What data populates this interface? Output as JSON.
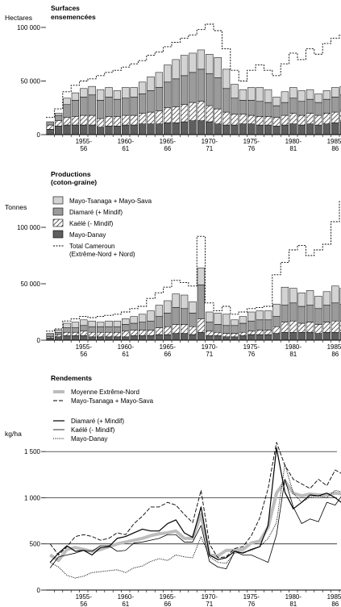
{
  "colors": {
    "mayo_tsanaga_sava": "#d3d3d3",
    "diamare": "#9b9b9b",
    "kaele_hatch": "#8a8a8a",
    "mayo_danay": "#5e5e5e",
    "moyenne": "#bdbdbd"
  },
  "x_ticks": [
    {
      "year": 1955,
      "l1": "1955-",
      "l2": "56"
    },
    {
      "year": 1960,
      "l1": "1960-",
      "l2": "61"
    },
    {
      "year": 1965,
      "l1": "1965-",
      "l2": "66"
    },
    {
      "year": 1970,
      "l1": "1970-",
      "l2": "71"
    },
    {
      "year": 1975,
      "l1": "1975-",
      "l2": "76"
    },
    {
      "year": 1980,
      "l1": "1980-",
      "l2": "81"
    },
    {
      "year": 1985,
      "l1": "1985-",
      "l2": "86"
    }
  ],
  "chart_data": [
    {
      "type": "bar",
      "stacked": true,
      "title": "Surfaces\nensemencées",
      "title_line1": "Surfaces",
      "title_line2": "ensemencées",
      "ylabel": "Hectares",
      "ylim": [
        0,
        100000
      ],
      "yticks": [
        0,
        50000,
        100000
      ],
      "ytick_labels": [
        "0",
        "50 000",
        "100 000"
      ],
      "x": [
        1951,
        1952,
        1953,
        1954,
        1955,
        1956,
        1957,
        1958,
        1959,
        1960,
        1961,
        1962,
        1963,
        1964,
        1965,
        1966,
        1967,
        1968,
        1969,
        1970,
        1971,
        1972,
        1973,
        1974,
        1975,
        1976,
        1977,
        1978,
        1979,
        1980,
        1981,
        1982,
        1983,
        1984,
        1985,
        1986
      ],
      "series": [
        {
          "key": "mayo_danay",
          "values": [
            5000,
            8000,
            9000,
            9000,
            9000,
            9000,
            7000,
            8000,
            8000,
            9000,
            9000,
            10000,
            10000,
            10000,
            11000,
            11000,
            12000,
            13000,
            13000,
            12000,
            10000,
            9000,
            9000,
            10000,
            10000,
            9000,
            9000,
            8000,
            9000,
            10000,
            9000,
            10000,
            9000,
            10000,
            11000,
            12000
          ]
        },
        {
          "key": "kaele",
          "values": [
            4000,
            5000,
            7000,
            8000,
            9000,
            9000,
            8000,
            9000,
            9000,
            9000,
            9000,
            10000,
            11000,
            12000,
            14000,
            15000,
            16000,
            17000,
            18000,
            15000,
            14000,
            12000,
            10000,
            9000,
            8000,
            8000,
            8000,
            8000,
            9000,
            10000,
            9000,
            10000,
            9000,
            10000,
            10000,
            11000
          ]
        },
        {
          "key": "diamare",
          "values": [
            3000,
            5000,
            12000,
            15000,
            17000,
            19000,
            17000,
            18000,
            16000,
            16000,
            17000,
            18000,
            20000,
            22000,
            24000,
            26000,
            27000,
            28000,
            30000,
            30000,
            29000,
            22000,
            15000,
            13000,
            14000,
            14000,
            13000,
            11000,
            12000,
            14000,
            13000,
            13000,
            12000,
            13000,
            14000,
            14000
          ]
        },
        {
          "key": "mayo_tsanaga_sava",
          "values": [
            0,
            2000,
            6000,
            7000,
            8000,
            8000,
            10000,
            9000,
            8000,
            10000,
            9000,
            11000,
            13000,
            14000,
            16000,
            18000,
            19000,
            18000,
            18000,
            18000,
            19000,
            18000,
            13000,
            10000,
            12000,
            13000,
            12000,
            8000,
            10000,
            10000,
            10000,
            9000,
            8000,
            8000,
            9000,
            8000
          ]
        }
      ],
      "total_cameroun": [
        16000,
        24000,
        40000,
        46000,
        50000,
        52000,
        55000,
        58000,
        60000,
        63000,
        66000,
        69000,
        74000,
        77000,
        82000,
        86000,
        90000,
        93000,
        98000,
        103000,
        97000,
        80000,
        60000,
        50000,
        60000,
        65000,
        60000,
        55000,
        66000,
        76000,
        70000,
        80000,
        75000,
        85000,
        90000,
        93000
      ]
    },
    {
      "type": "bar",
      "stacked": true,
      "title_line1": "Productions",
      "title_line2": "(coton-graine)",
      "ylabel": "Tonnes",
      "ylim": [
        0,
        125000
      ],
      "yticks": [
        0,
        50000,
        100000
      ],
      "ytick_labels": [
        "0",
        "50 000",
        "100 000"
      ],
      "legend": [
        {
          "key": "mayo_tsanaga_sava",
          "label": "Mayo-Tsanaga + Mayo-Sava"
        },
        {
          "key": "diamare",
          "label": "Diamaré (+ Mindif)"
        },
        {
          "key": "kaele",
          "label": "Kaélé (- Mindif)"
        },
        {
          "key": "mayo_danay",
          "label": "Mayo-Danay"
        },
        {
          "key": "total",
          "label_line1": "Total Cameroun",
          "label_line2": "(Extrême-Nord + Nord)"
        }
      ],
      "x": [
        1951,
        1952,
        1953,
        1954,
        1955,
        1956,
        1957,
        1958,
        1959,
        1960,
        1961,
        1962,
        1963,
        1964,
        1965,
        1966,
        1967,
        1968,
        1969,
        1970,
        1971,
        1972,
        1973,
        1974,
        1975,
        1976,
        1977,
        1978,
        1979,
        1980,
        1981,
        1982,
        1983,
        1984,
        1985,
        1986
      ],
      "series": [
        {
          "key": "mayo_danay",
          "values": [
            2000,
            3000,
            4000,
            4000,
            4000,
            3000,
            3000,
            3000,
            3000,
            3000,
            4000,
            4000,
            4000,
            5000,
            5000,
            6000,
            6000,
            5000,
            7000,
            4000,
            4000,
            3000,
            3000,
            4000,
            5000,
            5000,
            5000,
            6000,
            7000,
            7000,
            7000,
            7000,
            6000,
            7000,
            7000,
            7000
          ]
        },
        {
          "key": "kaele",
          "values": [
            1000,
            2000,
            3000,
            3000,
            4000,
            4000,
            4000,
            4000,
            4000,
            5000,
            5000,
            5000,
            5000,
            6000,
            7000,
            8000,
            8000,
            7000,
            12000,
            4000,
            3000,
            3000,
            3000,
            3000,
            3000,
            4000,
            4000,
            6000,
            9000,
            10000,
            8000,
            9000,
            8000,
            9000,
            10000,
            10000
          ]
        },
        {
          "key": "diamare",
          "values": [
            3000,
            2000,
            4000,
            4000,
            5000,
            5000,
            5000,
            5000,
            5000,
            6000,
            6000,
            7000,
            8000,
            10000,
            12000,
            15000,
            14000,
            12000,
            30000,
            8000,
            7000,
            7000,
            7000,
            8000,
            9000,
            9000,
            9000,
            9000,
            15000,
            16000,
            15000,
            15000,
            14000,
            15000,
            16000,
            15000
          ]
        },
        {
          "key": "mayo_tsanaga_sava",
          "values": [
            0,
            2000,
            4000,
            5000,
            5000,
            5000,
            4000,
            5000,
            5000,
            5000,
            6000,
            7000,
            9000,
            10000,
            11000,
            12000,
            12000,
            10000,
            15000,
            9000,
            10000,
            10000,
            5000,
            6000,
            8000,
            8000,
            8000,
            11000,
            16000,
            13000,
            12000,
            13000,
            11000,
            12000,
            15000,
            14000
          ]
        }
      ],
      "total_cameroun": [
        8000,
        10000,
        17000,
        19000,
        21000,
        20000,
        21000,
        22000,
        23000,
        25000,
        28000,
        30000,
        37000,
        42000,
        47000,
        53000,
        51000,
        48000,
        92000,
        33000,
        26000,
        30000,
        23000,
        25000,
        28000,
        29000,
        30000,
        58000,
        69000,
        80000,
        84000,
        75000,
        80000,
        85000,
        105000,
        123000
      ]
    },
    {
      "type": "line",
      "title": "Rendements",
      "ylabel": "kg/ha",
      "ylim": [
        0,
        1650
      ],
      "yticks": [
        0,
        500,
        1000,
        1500
      ],
      "ytick_labels": [
        "0",
        "500",
        "1 000",
        "1 500"
      ],
      "grid": true,
      "legend": [
        {
          "key": "moyenne",
          "label": "Moyenne Extrême-Nord"
        },
        {
          "key": "mts",
          "label": "Mayo-Tsanaga + Mayo-Sava"
        },
        {
          "key": "diamare",
          "label": "Diamaré (+ Mindif)"
        },
        {
          "key": "kaele",
          "label": "Kaélé (- Mindif)"
        },
        {
          "key": "danay",
          "label": "Mayo-Danay"
        }
      ],
      "x": [
        1951,
        1952,
        1953,
        1954,
        1955,
        1956,
        1957,
        1958,
        1959,
        1960,
        1961,
        1962,
        1963,
        1964,
        1965,
        1966,
        1967,
        1968,
        1969,
        1970,
        1971,
        1972,
        1973,
        1974,
        1975,
        1976,
        1977,
        1978,
        1979,
        1980,
        1981,
        1982,
        1983,
        1984,
        1985,
        1986
      ],
      "series": [
        {
          "key": "moyenne",
          "values": [
            380,
            320,
            440,
            460,
            440,
            420,
            440,
            470,
            500,
            520,
            540,
            560,
            590,
            610,
            620,
            640,
            560,
            560,
            820,
            380,
            370,
            430,
            430,
            440,
            510,
            530,
            680,
            1050,
            1180,
            1050,
            1020,
            1040,
            1030,
            1030,
            1050,
            1040
          ]
        },
        {
          "key": "mts",
          "values": [
            500,
            380,
            470,
            580,
            600,
            580,
            540,
            560,
            620,
            600,
            720,
            800,
            900,
            900,
            950,
            920,
            820,
            730,
            1080,
            500,
            350,
            360,
            450,
            470,
            590,
            780,
            1100,
            1600,
            1350,
            1200,
            1150,
            1100,
            1200,
            1130,
            1300,
            1250
          ]
        },
        {
          "key": "diamare",
          "values": [
            300,
            400,
            480,
            420,
            430,
            380,
            460,
            470,
            560,
            580,
            620,
            660,
            640,
            640,
            720,
            760,
            620,
            570,
            900,
            380,
            330,
            350,
            420,
            400,
            440,
            470,
            700,
            1540,
            1060,
            880,
            950,
            1030,
            1020,
            1050,
            1000,
            930
          ]
        },
        {
          "key": "kaele",
          "values": [
            240,
            360,
            380,
            400,
            430,
            420,
            480,
            480,
            420,
            430,
            510,
            520,
            540,
            560,
            600,
            600,
            520,
            520,
            700,
            310,
            250,
            230,
            420,
            380,
            380,
            340,
            300,
            600,
            1200,
            900,
            720,
            770,
            740,
            950,
            920,
            1050
          ]
        },
        {
          "key": "danay",
          "values": [
            300,
            250,
            160,
            130,
            150,
            190,
            200,
            210,
            220,
            190,
            240,
            260,
            310,
            340,
            320,
            380,
            360,
            350,
            580,
            360,
            300,
            290,
            400,
            410,
            430,
            470,
            560,
            730,
            1360,
            1050,
            950,
            1010,
            1020,
            1000,
            1080,
            1060
          ]
        }
      ]
    }
  ]
}
